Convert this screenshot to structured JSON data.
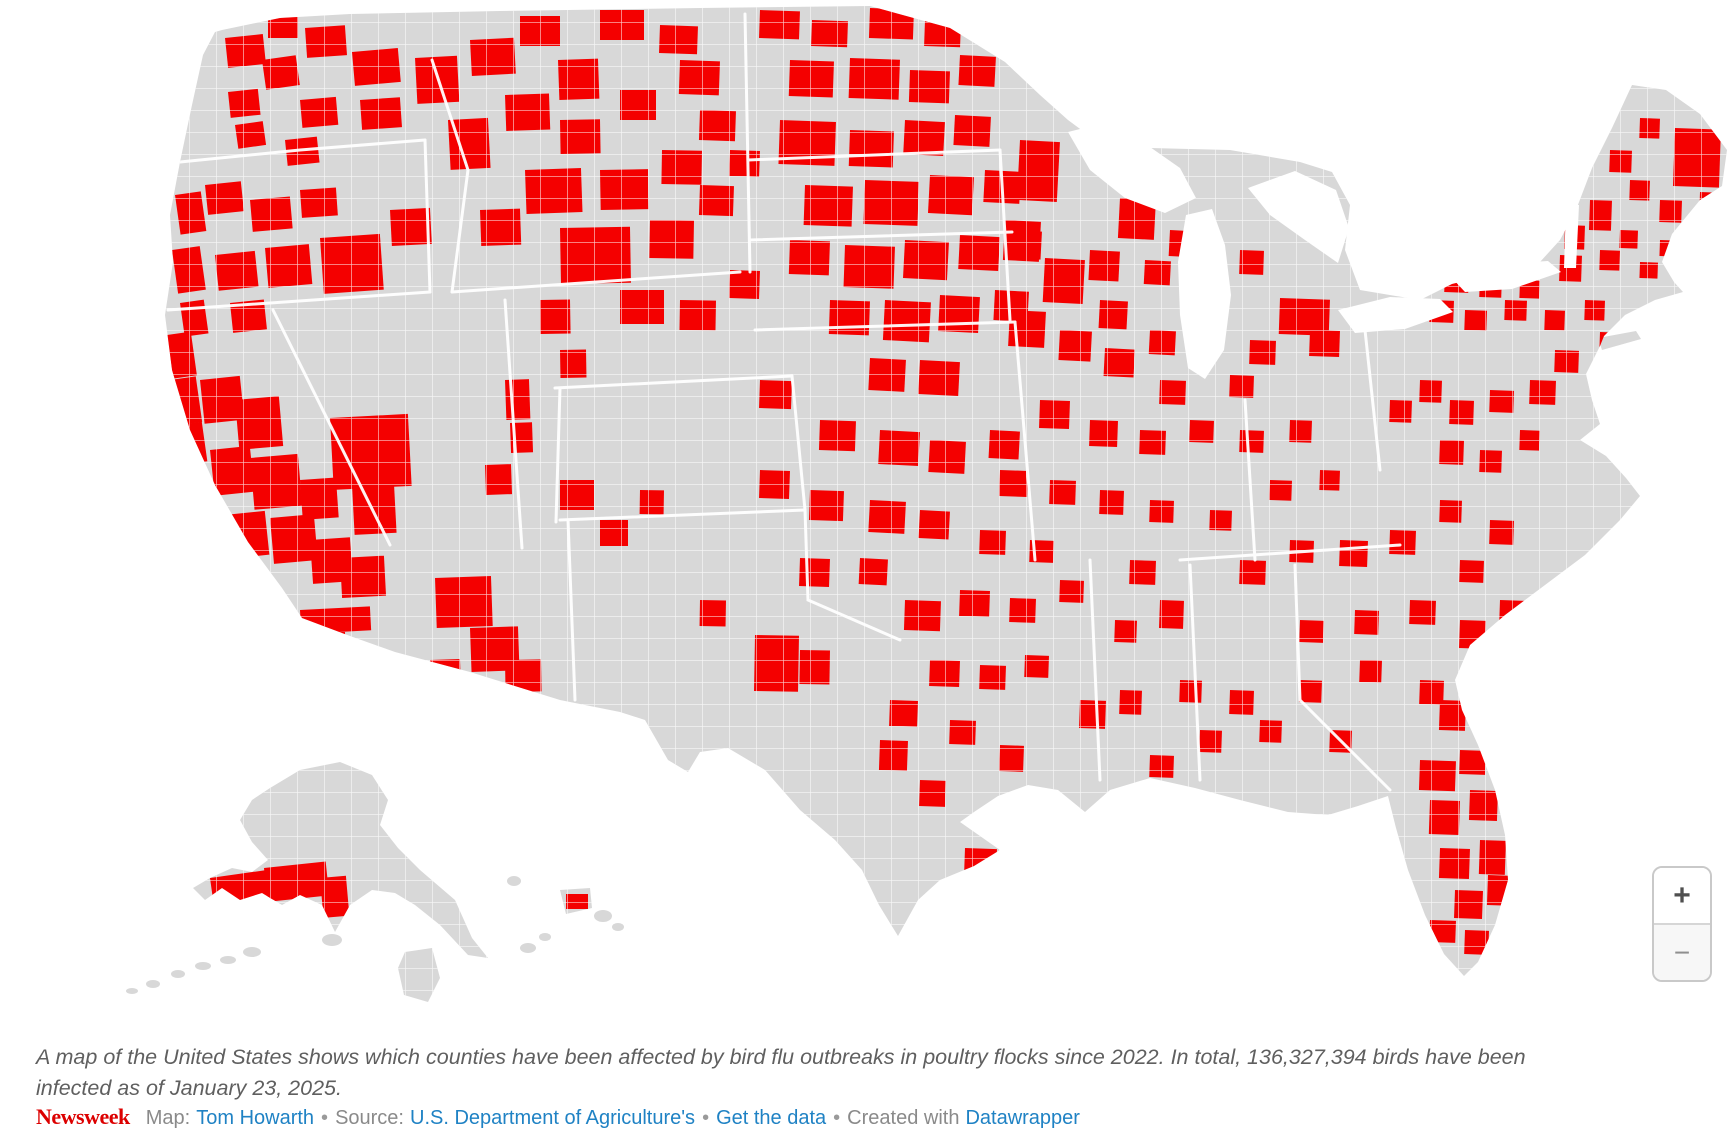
{
  "map": {
    "title": "US counties affected by bird flu outbreaks in poultry flocks since 2022",
    "colors": {
      "affected": "#f40000",
      "unaffected": "#d8d8d8",
      "boundary": "#ffffff"
    },
    "affected_counties": [
      [
        225,
        38,
        38,
        30,
        -6
      ],
      [
        268,
        12,
        30,
        26,
        0
      ],
      [
        305,
        28,
        40,
        30,
        -4
      ],
      [
        352,
        52,
        46,
        34,
        -5
      ],
      [
        262,
        60,
        34,
        30,
        -8
      ],
      [
        228,
        92,
        30,
        26,
        -6
      ],
      [
        300,
        100,
        36,
        28,
        -5
      ],
      [
        360,
        100,
        40,
        30,
        -4
      ],
      [
        415,
        58,
        42,
        46,
        -3
      ],
      [
        470,
        40,
        44,
        36,
        -3
      ],
      [
        520,
        16,
        40,
        30,
        0
      ],
      [
        558,
        60,
        40,
        40,
        -2
      ],
      [
        235,
        125,
        28,
        24,
        -8
      ],
      [
        285,
        140,
        32,
        26,
        -6
      ],
      [
        175,
        195,
        26,
        40,
        -8
      ],
      [
        205,
        185,
        36,
        30,
        -6
      ],
      [
        250,
        200,
        40,
        32,
        -5
      ],
      [
        300,
        190,
        36,
        28,
        -4
      ],
      [
        172,
        250,
        28,
        44,
        -8
      ],
      [
        215,
        255,
        40,
        36,
        -6
      ],
      [
        265,
        248,
        44,
        40,
        -5
      ],
      [
        180,
        303,
        24,
        34,
        -8
      ],
      [
        230,
        303,
        34,
        30,
        -6
      ],
      [
        320,
        238,
        60,
        56,
        -4
      ],
      [
        390,
        210,
        40,
        36,
        -3
      ],
      [
        600,
        10,
        44,
        30,
        0
      ],
      [
        660,
        25,
        38,
        28,
        2
      ],
      [
        448,
        120,
        40,
        50,
        -3
      ],
      [
        505,
        95,
        44,
        36,
        -2
      ],
      [
        560,
        120,
        40,
        34,
        -1
      ],
      [
        620,
        90,
        36,
        30,
        0
      ],
      [
        680,
        60,
        40,
        34,
        2
      ],
      [
        525,
        170,
        56,
        44,
        -2
      ],
      [
        600,
        170,
        48,
        40,
        -1
      ],
      [
        662,
        150,
        40,
        34,
        1
      ],
      [
        700,
        110,
        36,
        30,
        2
      ],
      [
        480,
        210,
        40,
        36,
        -2
      ],
      [
        560,
        228,
        70,
        56,
        -1
      ],
      [
        650,
        220,
        44,
        38,
        1
      ],
      [
        700,
        185,
        34,
        30,
        2
      ],
      [
        730,
        150,
        30,
        26,
        2
      ],
      [
        620,
        290,
        44,
        34,
        0
      ],
      [
        680,
        300,
        36,
        30,
        1
      ],
      [
        730,
        270,
        30,
        28,
        2
      ],
      [
        330,
        418,
        78,
        72,
        -3
      ],
      [
        352,
        485,
        42,
        50,
        -3
      ],
      [
        167,
        335,
        24,
        44,
        -8
      ],
      [
        170,
        380,
        26,
        46,
        -8
      ],
      [
        178,
        425,
        24,
        40,
        -8
      ],
      [
        200,
        380,
        40,
        44,
        -6
      ],
      [
        235,
        400,
        44,
        50,
        -5
      ],
      [
        210,
        450,
        40,
        46,
        -6
      ],
      [
        250,
        458,
        48,
        52,
        -5
      ],
      [
        225,
        515,
        40,
        44,
        -6
      ],
      [
        270,
        518,
        44,
        46,
        -5
      ],
      [
        300,
        480,
        36,
        40,
        -4
      ],
      [
        310,
        540,
        40,
        44,
        -4
      ],
      [
        340,
        558,
        44,
        40,
        -3
      ],
      [
        300,
        610,
        70,
        24,
        -3
      ],
      [
        305,
        634,
        40,
        32,
        -3
      ],
      [
        435,
        578,
        56,
        50,
        -2
      ],
      [
        470,
        628,
        48,
        44,
        -2
      ],
      [
        505,
        660,
        36,
        32,
        -1
      ],
      [
        430,
        660,
        30,
        28,
        -2
      ],
      [
        485,
        465,
        26,
        30,
        -2
      ],
      [
        505,
        380,
        24,
        40,
        -2
      ],
      [
        510,
        423,
        22,
        30,
        -2
      ],
      [
        540,
        300,
        30,
        34,
        -1
      ],
      [
        560,
        350,
        26,
        28,
        -1
      ],
      [
        560,
        480,
        34,
        30,
        0
      ],
      [
        600,
        520,
        28,
        26,
        0
      ],
      [
        640,
        490,
        24,
        24,
        1
      ],
      [
        755,
        635,
        44,
        56,
        1
      ],
      [
        800,
        650,
        30,
        34,
        1
      ],
      [
        700,
        600,
        26,
        26,
        1
      ],
      [
        760,
        10,
        40,
        28,
        2
      ],
      [
        812,
        20,
        36,
        26,
        2
      ],
      [
        870,
        8,
        44,
        30,
        2
      ],
      [
        925,
        20,
        36,
        26,
        2
      ],
      [
        790,
        60,
        44,
        36,
        2
      ],
      [
        850,
        58,
        50,
        40,
        2
      ],
      [
        910,
        70,
        40,
        32,
        2
      ],
      [
        960,
        55,
        36,
        30,
        3
      ],
      [
        780,
        120,
        56,
        44,
        2
      ],
      [
        850,
        130,
        44,
        36,
        2
      ],
      [
        905,
        120,
        40,
        34,
        3
      ],
      [
        955,
        115,
        36,
        30,
        3
      ],
      [
        805,
        185,
        48,
        40,
        2
      ],
      [
        865,
        180,
        54,
        44,
        2
      ],
      [
        930,
        175,
        44,
        38,
        3
      ],
      [
        985,
        170,
        36,
        32,
        3
      ],
      [
        790,
        240,
        40,
        34,
        2
      ],
      [
        845,
        245,
        50,
        42,
        2
      ],
      [
        905,
        240,
        44,
        38,
        3
      ],
      [
        960,
        235,
        40,
        34,
        3
      ],
      [
        1010,
        230,
        32,
        28,
        3
      ],
      [
        830,
        300,
        40,
        34,
        2
      ],
      [
        885,
        300,
        46,
        40,
        3
      ],
      [
        940,
        295,
        40,
        36,
        3
      ],
      [
        995,
        290,
        34,
        30,
        3
      ],
      [
        870,
        358,
        36,
        32,
        3
      ],
      [
        920,
        360,
        40,
        34,
        3
      ],
      [
        760,
        380,
        32,
        28,
        2
      ],
      [
        820,
        420,
        36,
        30,
        2
      ],
      [
        880,
        430,
        40,
        34,
        3
      ],
      [
        930,
        440,
        36,
        32,
        3
      ],
      [
        990,
        430,
        30,
        28,
        3
      ],
      [
        760,
        470,
        30,
        28,
        2
      ],
      [
        810,
        490,
        34,
        30,
        2
      ],
      [
        870,
        500,
        36,
        32,
        3
      ],
      [
        920,
        510,
        30,
        28,
        3
      ],
      [
        860,
        558,
        28,
        26,
        3
      ],
      [
        800,
        558,
        30,
        28,
        2
      ],
      [
        1020,
        140,
        40,
        60,
        3
      ],
      [
        1005,
        220,
        36,
        40,
        3
      ],
      [
        1045,
        258,
        40,
        44,
        3
      ],
      [
        1010,
        310,
        36,
        36,
        3
      ],
      [
        1060,
        330,
        32,
        30,
        3
      ],
      [
        1100,
        300,
        28,
        28,
        3
      ],
      [
        1090,
        250,
        30,
        30,
        3
      ],
      [
        1120,
        198,
        36,
        40,
        3
      ],
      [
        1170,
        230,
        28,
        26,
        3
      ],
      [
        1145,
        260,
        26,
        24,
        3
      ],
      [
        1105,
        348,
        30,
        28,
        3
      ],
      [
        1150,
        330,
        26,
        24,
        3
      ],
      [
        1190,
        310,
        24,
        22,
        3
      ],
      [
        1240,
        250,
        24,
        24,
        2
      ],
      [
        1280,
        298,
        50,
        36,
        2
      ],
      [
        1310,
        330,
        30,
        26,
        2
      ],
      [
        1250,
        340,
        26,
        24,
        2
      ],
      [
        1230,
        375,
        24,
        22,
        2
      ],
      [
        1160,
        380,
        26,
        24,
        2
      ],
      [
        1040,
        400,
        30,
        28,
        2
      ],
      [
        1090,
        420,
        28,
        26,
        2
      ],
      [
        1140,
        430,
        26,
        24,
        2
      ],
      [
        1190,
        420,
        24,
        22,
        2
      ],
      [
        1240,
        430,
        24,
        22,
        2
      ],
      [
        1290,
        420,
        22,
        22,
        2
      ],
      [
        1000,
        470,
        28,
        26,
        2
      ],
      [
        1050,
        480,
        26,
        24,
        2
      ],
      [
        1100,
        490,
        24,
        24,
        2
      ],
      [
        980,
        530,
        26,
        24,
        2
      ],
      [
        1030,
        540,
        24,
        22,
        2
      ],
      [
        905,
        600,
        36,
        30,
        2
      ],
      [
        960,
        590,
        30,
        26,
        2
      ],
      [
        1010,
        598,
        26,
        24,
        2
      ],
      [
        1060,
        580,
        24,
        22,
        2
      ],
      [
        1130,
        560,
        26,
        24,
        2
      ],
      [
        1160,
        600,
        24,
        28,
        2
      ],
      [
        1115,
        620,
        22,
        22,
        2
      ],
      [
        930,
        660,
        30,
        26,
        2
      ],
      [
        980,
        665,
        26,
        24,
        2
      ],
      [
        1025,
        655,
        24,
        22,
        2
      ],
      [
        890,
        700,
        28,
        26,
        2
      ],
      [
        950,
        720,
        26,
        24,
        2
      ],
      [
        1000,
        745,
        24,
        26,
        2
      ],
      [
        1080,
        700,
        26,
        28,
        2
      ],
      [
        1120,
        690,
        22,
        24,
        2
      ],
      [
        1180,
        680,
        22,
        22,
        2
      ],
      [
        1230,
        690,
        24,
        24,
        2
      ],
      [
        965,
        848,
        32,
        28,
        2
      ],
      [
        880,
        740,
        28,
        30,
        2
      ],
      [
        920,
        780,
        26,
        26,
        2
      ],
      [
        1030,
        850,
        34,
        30,
        2
      ],
      [
        1090,
        830,
        26,
        24,
        2
      ],
      [
        1150,
        755,
        24,
        22,
        2
      ],
      [
        1150,
        500,
        24,
        22,
        2
      ],
      [
        1210,
        510,
        22,
        20,
        2
      ],
      [
        1270,
        480,
        22,
        20,
        2
      ],
      [
        1320,
        470,
        20,
        20,
        2
      ],
      [
        1240,
        560,
        26,
        24,
        2
      ],
      [
        1290,
        540,
        24,
        22,
        2
      ],
      [
        1340,
        540,
        28,
        26,
        2
      ],
      [
        1390,
        530,
        26,
        24,
        2
      ],
      [
        1300,
        620,
        24,
        22,
        2
      ],
      [
        1355,
        610,
        24,
        24,
        2
      ],
      [
        1410,
        600,
        26,
        24,
        2
      ],
      [
        1460,
        620,
        26,
        28,
        2
      ],
      [
        1300,
        680,
        22,
        22,
        2
      ],
      [
        1360,
        660,
        22,
        22,
        2
      ],
      [
        1420,
        680,
        24,
        24,
        2
      ],
      [
        1330,
        730,
        22,
        22,
        2
      ],
      [
        1260,
        720,
        22,
        22,
        2
      ],
      [
        1200,
        730,
        22,
        22,
        2
      ],
      [
        1440,
        700,
        26,
        30,
        2
      ],
      [
        1470,
        650,
        24,
        24,
        2
      ],
      [
        1500,
        600,
        26,
        26,
        2
      ],
      [
        1460,
        560,
        24,
        22,
        2
      ],
      [
        1490,
        520,
        24,
        24,
        2
      ],
      [
        1440,
        500,
        22,
        22,
        2
      ],
      [
        1420,
        760,
        36,
        30,
        2
      ],
      [
        1460,
        750,
        26,
        24,
        2
      ],
      [
        1430,
        800,
        30,
        34,
        2
      ],
      [
        1470,
        790,
        28,
        30,
        2
      ],
      [
        1440,
        848,
        30,
        30,
        2
      ],
      [
        1480,
        840,
        26,
        34,
        2
      ],
      [
        1455,
        890,
        28,
        28,
        2
      ],
      [
        1488,
        875,
        24,
        30,
        2
      ],
      [
        1430,
        920,
        26,
        22,
        2
      ],
      [
        1465,
        930,
        24,
        24,
        2
      ],
      [
        1405,
        260,
        26,
        24,
        2
      ],
      [
        1445,
        270,
        24,
        22,
        2
      ],
      [
        1480,
        275,
        22,
        22,
        2
      ],
      [
        1430,
        300,
        24,
        22,
        2
      ],
      [
        1465,
        310,
        22,
        20,
        2
      ],
      [
        1505,
        300,
        22,
        20,
        2
      ],
      [
        1545,
        310,
        20,
        20,
        2
      ],
      [
        1520,
        280,
        20,
        18,
        2
      ],
      [
        1560,
        255,
        22,
        26,
        2
      ],
      [
        1585,
        300,
        20,
        20,
        2
      ],
      [
        1600,
        332,
        22,
        16,
        2
      ],
      [
        1555,
        350,
        24,
        22,
        2
      ],
      [
        1530,
        380,
        26,
        24,
        2
      ],
      [
        1490,
        390,
        24,
        22,
        2
      ],
      [
        1450,
        400,
        24,
        24,
        2
      ],
      [
        1420,
        380,
        22,
        22,
        2
      ],
      [
        1390,
        400,
        22,
        22,
        2
      ],
      [
        1440,
        440,
        24,
        24,
        2
      ],
      [
        1480,
        450,
        22,
        22,
        2
      ],
      [
        1520,
        430,
        20,
        20,
        2
      ],
      [
        1600,
        250,
        20,
        20,
        2
      ],
      [
        1620,
        230,
        18,
        18,
        2
      ],
      [
        1640,
        262,
        18,
        16,
        2
      ],
      [
        1660,
        240,
        16,
        16,
        2
      ],
      [
        1675,
        128,
        46,
        58,
        2
      ],
      [
        1700,
        192,
        24,
        26,
        2
      ],
      [
        1660,
        200,
        22,
        22,
        2
      ],
      [
        1630,
        180,
        20,
        20,
        2
      ],
      [
        1610,
        150,
        22,
        22,
        2
      ],
      [
        1640,
        118,
        20,
        20,
        2
      ],
      [
        1590,
        200,
        22,
        30,
        2
      ],
      [
        1565,
        225,
        20,
        24,
        2
      ],
      [
        210,
        878,
        60,
        30,
        -8
      ],
      [
        264,
        868,
        62,
        34,
        -6
      ],
      [
        320,
        878,
        26,
        40,
        -5
      ],
      [
        203,
        903,
        14,
        12,
        -5
      ],
      [
        566,
        894,
        22,
        15,
        0
      ]
    ]
  },
  "zoom_controls": {
    "zoom_in_label": "+",
    "zoom_out_label": "−"
  },
  "caption": "A map of the United States shows which counties have been affected by bird flu outbreaks in poultry flocks since 2022. In total, 136,327,394 birds have been infected as of January 23, 2025.",
  "attribution": {
    "brand": "Newsweek",
    "map_label": "Map:",
    "map_author": "Tom Howarth",
    "separator": "•",
    "source_label": "Source:",
    "source_name": "U.S. Department of Agriculture's",
    "get_data_label": "Get the data",
    "created_with_label": "Created with",
    "tool_name": "Datawrapper"
  }
}
